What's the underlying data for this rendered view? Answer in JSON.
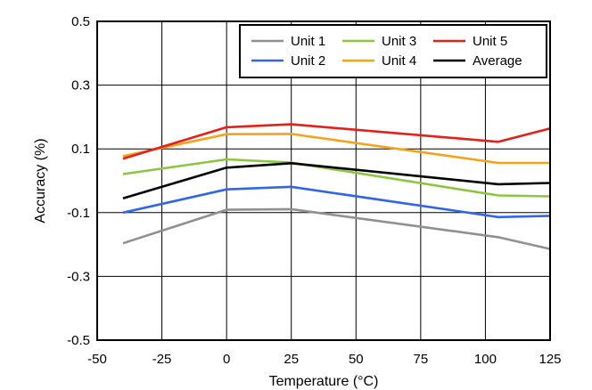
{
  "chart_data": {
    "type": "line",
    "title": "",
    "xlabel": "Temperature (°C)",
    "ylabel": "Accuracy (%)",
    "xlim": [
      -50,
      125
    ],
    "ylim": [
      -0.5,
      0.5
    ],
    "xticks": [
      -50,
      -25,
      0,
      25,
      50,
      75,
      100,
      125
    ],
    "xtick_labels": [
      "-50",
      "-25",
      "0",
      "25",
      "50",
      "75",
      "100",
      "125"
    ],
    "yticks": [
      -0.5,
      -0.3,
      -0.1,
      0.1,
      0.3,
      0.5
    ],
    "ytick_labels": [
      "-0.5",
      "-0.3",
      "-0.1",
      "0.1",
      "0.3",
      "0.5"
    ],
    "grid": true,
    "legend_position": "top-right",
    "x": [
      -40,
      0,
      25,
      105,
      125
    ],
    "series": [
      {
        "name": "Unit 1",
        "color": "#909090",
        "values": [
          -0.196,
          -0.091,
          -0.089,
          -0.177,
          -0.214
        ]
      },
      {
        "name": "Unit 2",
        "color": "#3366e6",
        "values": [
          -0.1,
          -0.027,
          -0.019,
          -0.114,
          -0.11
        ]
      },
      {
        "name": "Unit 3",
        "color": "#8cc63f",
        "values": [
          0.021,
          0.067,
          0.057,
          -0.046,
          -0.049
        ]
      },
      {
        "name": "Unit 4",
        "color": "#f7a21b",
        "values": [
          0.077,
          0.146,
          0.147,
          0.056,
          0.056
        ]
      },
      {
        "name": "Unit 5",
        "color": "#e32119",
        "values": [
          0.069,
          0.168,
          0.177,
          0.122,
          0.164
        ]
      },
      {
        "name": "Average",
        "color": "#000000",
        "values": [
          -0.055,
          0.041,
          0.055,
          -0.011,
          -0.007
        ]
      }
    ]
  }
}
